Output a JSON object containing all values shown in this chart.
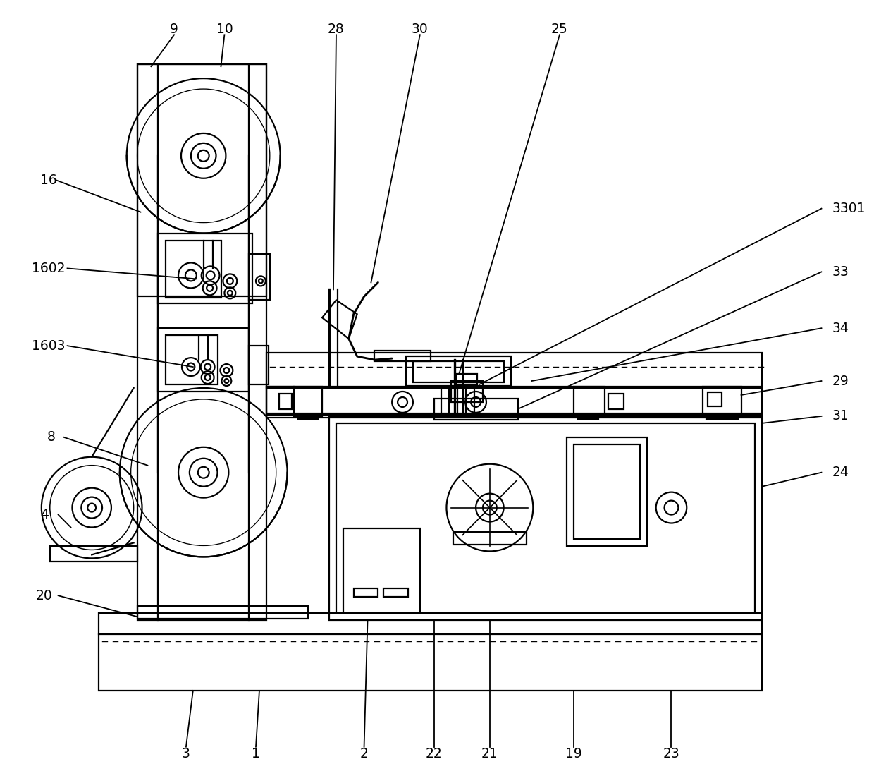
{
  "bg_color": "#ffffff",
  "line_color": "#000000",
  "lw": 1.6,
  "fig_width": 12.4,
  "fig_height": 11.0,
  "dpi": 100
}
